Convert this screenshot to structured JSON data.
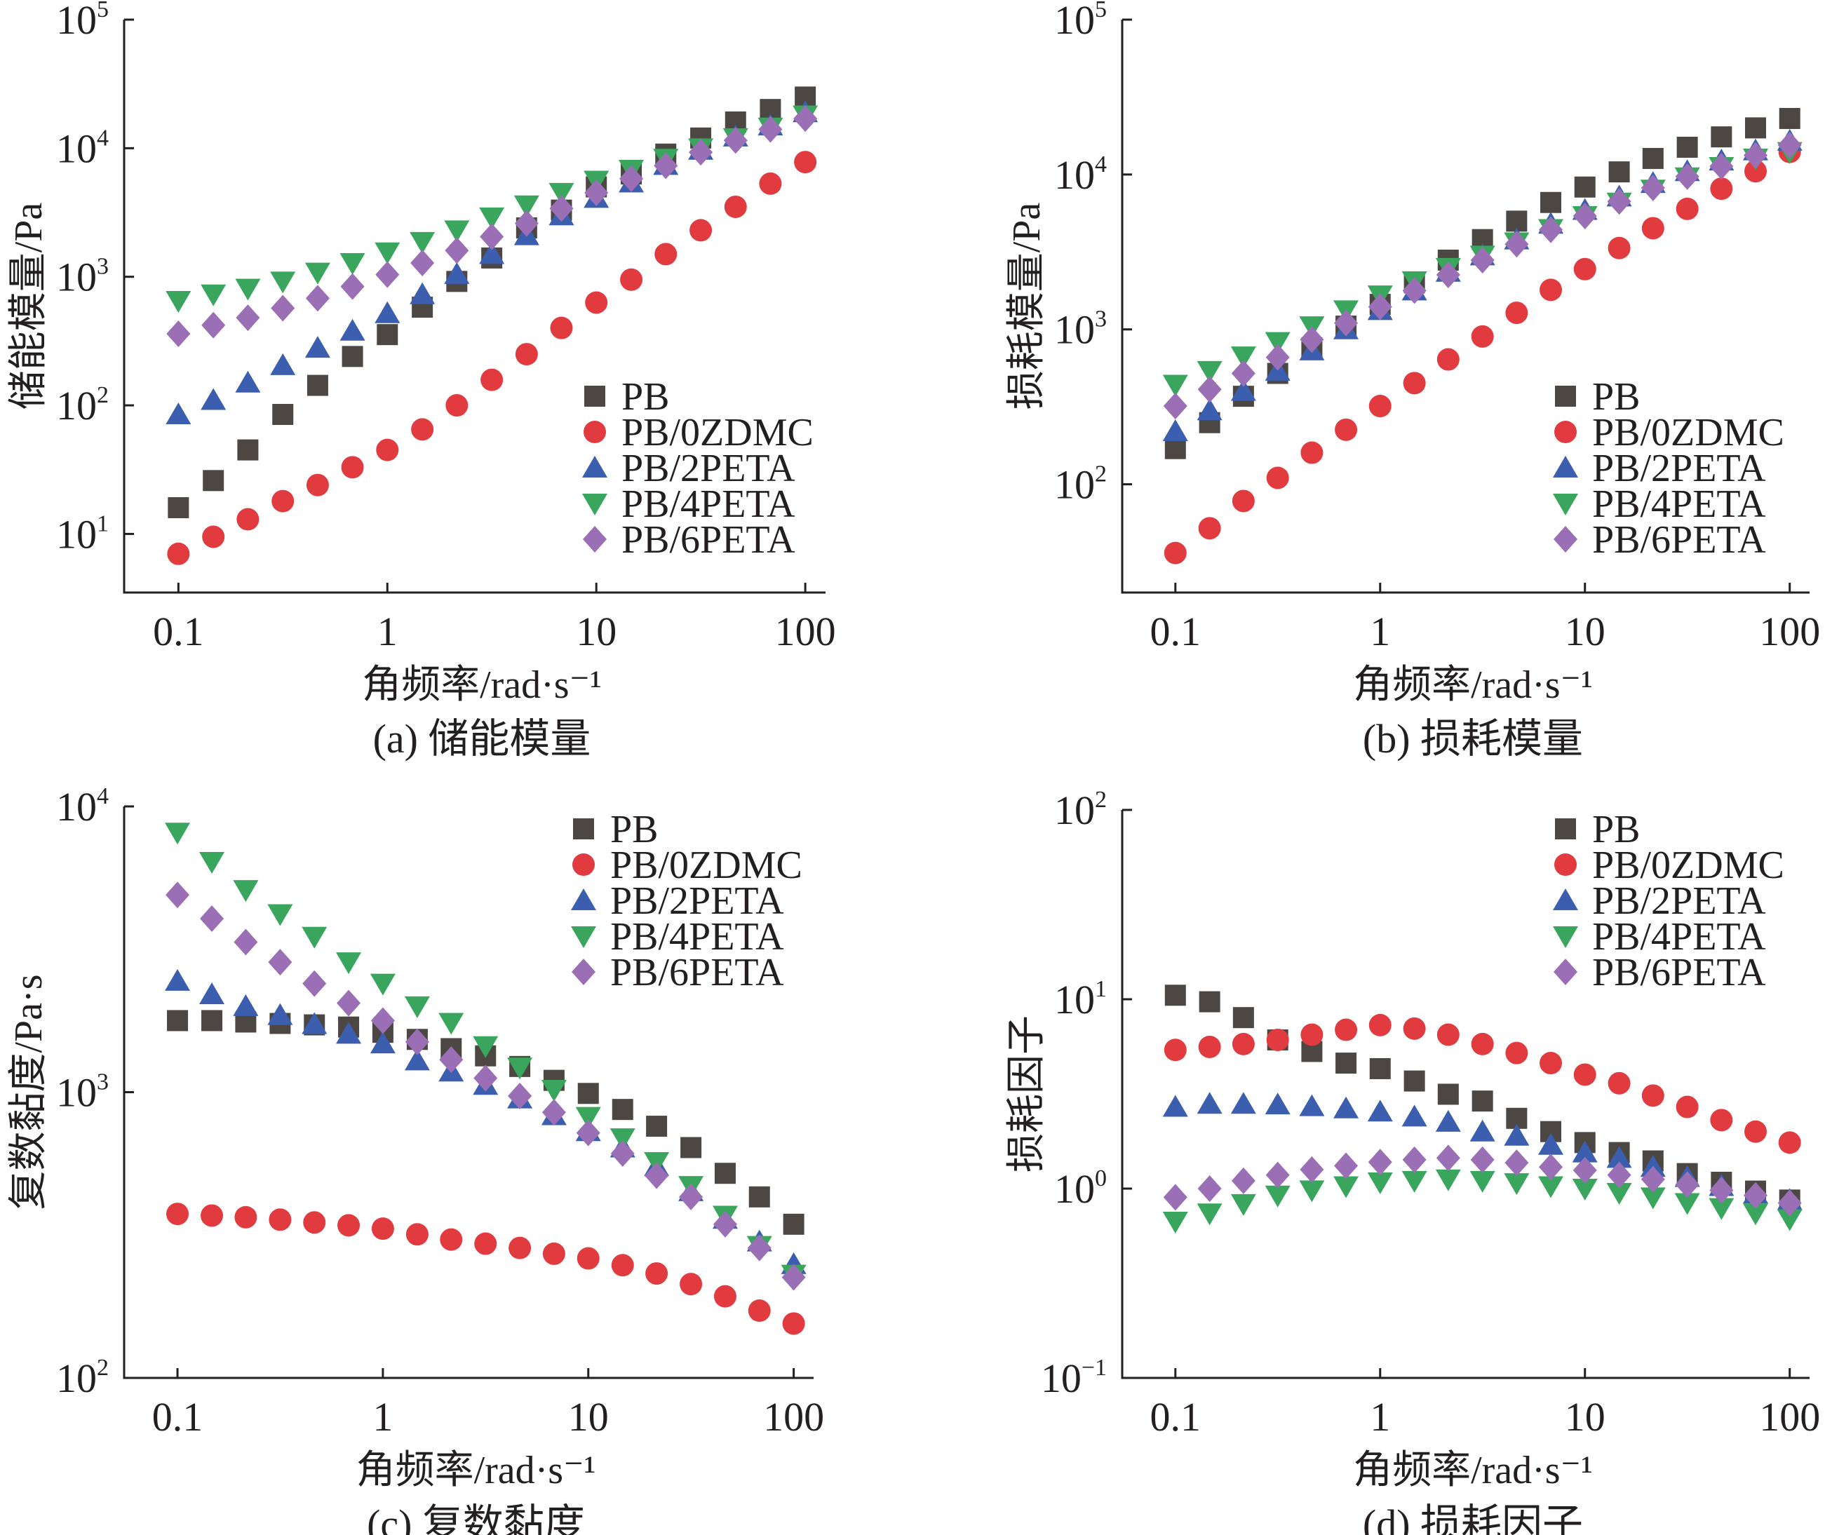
{
  "figure": {
    "series_styles": [
      {
        "name": "PB",
        "color": "#4d4744",
        "marker": "square"
      },
      {
        "name": "PB/0ZDMC",
        "color": "#e23b3f",
        "marker": "circle"
      },
      {
        "name": "PB/2PETA",
        "color": "#3b5fae",
        "marker": "triangle-up"
      },
      {
        "name": "PB/4PETA",
        "color": "#3aa55c",
        "marker": "triangle-down"
      },
      {
        "name": "PB/6PETA",
        "color": "#9a6fb5",
        "marker": "diamond"
      }
    ]
  },
  "chart_data": [
    {
      "type": "scatter",
      "caption": "(a) 储能模量",
      "xlabel": "角频率/rad·s⁻¹",
      "ylabel": "储能模量/Pa",
      "xscale": "log",
      "yscale": "log",
      "xlim": [
        0.055,
        125
      ],
      "ylim": [
        3.5,
        100000
      ],
      "xticks": [
        {
          "value": 0.1,
          "label": "0.1"
        },
        {
          "value": 1,
          "label": "1"
        },
        {
          "value": 10,
          "label": "10"
        },
        {
          "value": 100,
          "label": "100"
        }
      ],
      "yticks": [
        {
          "value": 10,
          "base": "10",
          "exp": "1"
        },
        {
          "value": 100,
          "base": "10",
          "exp": "2"
        },
        {
          "value": 1000,
          "base": "10",
          "exp": "3"
        },
        {
          "value": 10000,
          "base": "10",
          "exp": "4"
        },
        {
          "value": 100000,
          "base": "10",
          "exp": "5"
        }
      ],
      "legend_position": "bottom-right",
      "x": [
        0.1,
        0.147,
        0.215,
        0.316,
        0.464,
        0.681,
        1,
        1.47,
        2.15,
        3.16,
        4.64,
        6.81,
        10,
        14.7,
        21.5,
        31.6,
        46.4,
        68.1,
        100
      ],
      "series": [
        {
          "name": "PB",
          "values": [
            16,
            26,
            45,
            85,
            143,
            240,
            355,
            580,
            920,
            1400,
            2400,
            3300,
            5000,
            6300,
            9000,
            12000,
            16000,
            20000,
            25000
          ]
        },
        {
          "name": "PB/0ZDMC",
          "values": [
            7,
            9.5,
            13,
            18,
            24,
            33,
            45,
            65,
            100,
            158,
            250,
            400,
            630,
            950,
            1500,
            2300,
            3500,
            5300,
            7800
          ]
        },
        {
          "name": "PB/2PETA",
          "values": [
            85,
            110,
            150,
            205,
            280,
            380,
            520,
            730,
            1050,
            1500,
            2100,
            3000,
            4100,
            5400,
            7400,
            9700,
            12300,
            15000,
            19000
          ]
        },
        {
          "name": "PB/4PETA",
          "values": [
            650,
            730,
            810,
            920,
            1080,
            1280,
            1550,
            1870,
            2300,
            2900,
            3600,
            4500,
            5600,
            6800,
            8300,
            10000,
            12000,
            14500,
            18000
          ]
        },
        {
          "name": "PB/6PETA",
          "values": [
            360,
            420,
            480,
            570,
            680,
            840,
            1040,
            1280,
            1600,
            2050,
            2600,
            3400,
            4500,
            5800,
            7300,
            9300,
            11500,
            14000,
            17000
          ]
        }
      ]
    },
    {
      "type": "scatter",
      "caption": "(b) 损耗模量",
      "xlabel": "角频率/rad·s⁻¹",
      "ylabel": "损耗模量/Pa",
      "xscale": "log",
      "yscale": "log",
      "xlim": [
        0.055,
        125
      ],
      "ylim": [
        20,
        100000
      ],
      "xticks": [
        {
          "value": 0.1,
          "label": "0.1"
        },
        {
          "value": 1,
          "label": "1"
        },
        {
          "value": 10,
          "label": "10"
        },
        {
          "value": 100,
          "label": "100"
        }
      ],
      "yticks": [
        {
          "value": 100,
          "base": "10",
          "exp": "2"
        },
        {
          "value": 1000,
          "base": "10",
          "exp": "3"
        },
        {
          "value": 10000,
          "base": "10",
          "exp": "4"
        },
        {
          "value": 100000,
          "base": "10",
          "exp": "5"
        }
      ],
      "legend_position": "bottom-right",
      "x": [
        0.1,
        0.147,
        0.215,
        0.316,
        0.464,
        0.681,
        1,
        1.47,
        2.15,
        3.16,
        4.64,
        6.81,
        10,
        14.7,
        21.5,
        31.6,
        46.4,
        68.1,
        100
      ],
      "series": [
        {
          "name": "PB",
          "values": [
            170,
            250,
            370,
            520,
            760,
            1050,
            1450,
            2000,
            2800,
            3800,
            5000,
            6600,
            8300,
            10400,
            12700,
            15000,
            17500,
            20000,
            23000
          ]
        },
        {
          "name": "PB/0ZDMC",
          "values": [
            36,
            52,
            78,
            110,
            160,
            225,
            320,
            450,
            640,
            900,
            1280,
            1800,
            2450,
            3350,
            4500,
            6000,
            8100,
            10500,
            14000
          ]
        },
        {
          "name": "PB/2PETA",
          "values": [
            220,
            300,
            400,
            540,
            730,
            1000,
            1330,
            1780,
            2350,
            3000,
            3800,
            4800,
            5900,
            7200,
            8800,
            10500,
            12300,
            14300,
            16500
          ]
        },
        {
          "name": "PB/4PETA",
          "values": [
            440,
            540,
            670,
            830,
            1050,
            1330,
            1660,
            2050,
            2500,
            3000,
            3650,
            4450,
            5400,
            6600,
            8000,
            9600,
            11200,
            12700,
            14000
          ]
        },
        {
          "name": "PB/6PETA",
          "values": [
            320,
            410,
            520,
            660,
            860,
            1100,
            1400,
            1780,
            2250,
            2800,
            3550,
            4400,
            5400,
            6700,
            8200,
            9700,
            11300,
            13300,
            15500
          ]
        }
      ]
    },
    {
      "type": "scatter",
      "caption": "(c) 复数黏度",
      "xlabel": "角频率/rad·s⁻¹",
      "ylabel": "复数黏度/Pa·s",
      "xscale": "log",
      "yscale": "log",
      "xlim": [
        0.055,
        125
      ],
      "ylim": [
        100,
        10000
      ],
      "xticks": [
        {
          "value": 0.1,
          "label": "0.1"
        },
        {
          "value": 1,
          "label": "1"
        },
        {
          "value": 10,
          "label": "10"
        },
        {
          "value": 100,
          "label": "100"
        }
      ],
      "yticks": [
        {
          "value": 100,
          "base": "10",
          "exp": "2"
        },
        {
          "value": 1000,
          "base": "10",
          "exp": "3"
        },
        {
          "value": 10000,
          "base": "10",
          "exp": "4"
        }
      ],
      "legend_position": "top-right",
      "x": [
        0.1,
        0.147,
        0.215,
        0.316,
        0.464,
        0.681,
        1,
        1.47,
        2.15,
        3.16,
        4.64,
        6.81,
        10,
        14.7,
        21.5,
        31.6,
        46.4,
        68.1,
        100
      ],
      "series": [
        {
          "name": "PB",
          "values": [
            1780,
            1780,
            1760,
            1740,
            1720,
            1690,
            1620,
            1530,
            1420,
            1340,
            1230,
            1100,
            990,
            870,
            760,
            640,
            520,
            430,
            345
          ]
        },
        {
          "name": "PB/0ZDMC",
          "values": [
            375,
            370,
            365,
            358,
            350,
            342,
            333,
            318,
            305,
            295,
            285,
            272,
            262,
            248,
            232,
            213,
            193,
            172,
            155
          ]
        },
        {
          "name": "PB/2PETA",
          "values": [
            2450,
            2200,
            2000,
            1860,
            1730,
            1600,
            1480,
            1290,
            1180,
            1060,
            950,
            830,
            730,
            640,
            550,
            450,
            360,
            300,
            250
          ]
        },
        {
          "name": "PB/4PETA",
          "values": [
            8100,
            6400,
            5100,
            4200,
            3500,
            2850,
            2400,
            2000,
            1750,
            1450,
            1220,
            1020,
            820,
            690,
            570,
            470,
            370,
            290,
            230
          ]
        },
        {
          "name": "PB/6PETA",
          "values": [
            4900,
            4050,
            3350,
            2850,
            2400,
            2050,
            1780,
            1500,
            1300,
            1120,
            970,
            850,
            720,
            610,
            510,
            430,
            345,
            285,
            225
          ]
        }
      ]
    },
    {
      "type": "scatter",
      "caption": "(d) 损耗因子",
      "xlabel": "角频率/rad·s⁻¹",
      "ylabel": "损耗因子",
      "xscale": "log",
      "yscale": "log",
      "xlim": [
        0.055,
        125
      ],
      "ylim": [
        0.1,
        100
      ],
      "xticks": [
        {
          "value": 0.1,
          "label": "0.1"
        },
        {
          "value": 1,
          "label": "1"
        },
        {
          "value": 10,
          "label": "10"
        },
        {
          "value": 100,
          "label": "100"
        }
      ],
      "yticks": [
        {
          "value": 0.1,
          "base": "10",
          "exp": "−1"
        },
        {
          "value": 1,
          "base": "10",
          "exp": "0"
        },
        {
          "value": 10,
          "base": "10",
          "exp": "1"
        },
        {
          "value": 100,
          "base": "10",
          "exp": "2"
        }
      ],
      "legend_position": "top-right",
      "x": [
        0.1,
        0.147,
        0.215,
        0.316,
        0.464,
        0.681,
        1,
        1.47,
        2.15,
        3.16,
        4.64,
        6.81,
        10,
        14.7,
        21.5,
        31.6,
        46.4,
        68.1,
        100
      ],
      "series": [
        {
          "name": "PB",
          "values": [
            10.5,
            9.7,
            8.0,
            6.1,
            5.3,
            4.6,
            4.3,
            3.7,
            3.15,
            2.9,
            2.35,
            2.0,
            1.75,
            1.55,
            1.4,
            1.2,
            1.08,
            0.97,
            0.87
          ]
        },
        {
          "name": "PB/0ZDMC",
          "values": [
            5.4,
            5.6,
            5.8,
            6.1,
            6.5,
            6.9,
            7.3,
            7.0,
            6.5,
            5.8,
            5.2,
            4.6,
            4.0,
            3.6,
            3.1,
            2.7,
            2.3,
            2.0,
            1.75
          ]
        },
        {
          "name": "PB/2PETA",
          "values": [
            2.7,
            2.8,
            2.8,
            2.78,
            2.72,
            2.65,
            2.55,
            2.4,
            2.25,
            2.0,
            1.9,
            1.7,
            1.55,
            1.45,
            1.3,
            1.15,
            1.03,
            0.94,
            0.87
          ]
        },
        {
          "name": "PB/4PETA",
          "values": [
            0.67,
            0.74,
            0.83,
            0.92,
            0.98,
            1.03,
            1.08,
            1.1,
            1.12,
            1.1,
            1.07,
            1.03,
            1.0,
            0.95,
            0.9,
            0.84,
            0.79,
            0.74,
            0.69
          ]
        },
        {
          "name": "PB/6PETA",
          "values": [
            0.9,
            1.0,
            1.1,
            1.18,
            1.26,
            1.32,
            1.38,
            1.42,
            1.45,
            1.42,
            1.37,
            1.3,
            1.25,
            1.18,
            1.12,
            1.05,
            0.98,
            0.92,
            0.84
          ]
        }
      ]
    }
  ]
}
